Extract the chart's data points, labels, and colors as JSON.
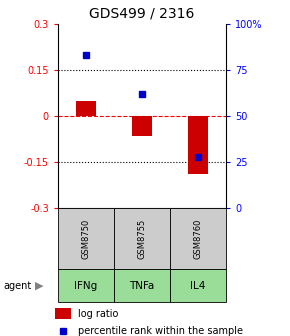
{
  "title": "GDS499 / 2316",
  "categories": [
    "IFNg",
    "TNFa",
    "IL4"
  ],
  "gsm_labels": [
    "GSM8750",
    "GSM8755",
    "GSM8760"
  ],
  "log_ratios": [
    0.05,
    -0.065,
    -0.19
  ],
  "percentile_ranks": [
    83,
    62,
    28
  ],
  "ylim_left": [
    -0.3,
    0.3
  ],
  "ylim_right": [
    0,
    100
  ],
  "left_ticks": [
    -0.3,
    -0.15,
    0,
    0.15,
    0.3
  ],
  "right_ticks": [
    0,
    25,
    50,
    75,
    100
  ],
  "right_tick_labels": [
    "0",
    "25",
    "50",
    "75",
    "100%"
  ],
  "bar_color": "#cc0000",
  "dot_color": "#0000cc",
  "gsm_bg_color": "#cccccc",
  "agent_bg_color": "#99dd99",
  "bar_width": 0.35
}
